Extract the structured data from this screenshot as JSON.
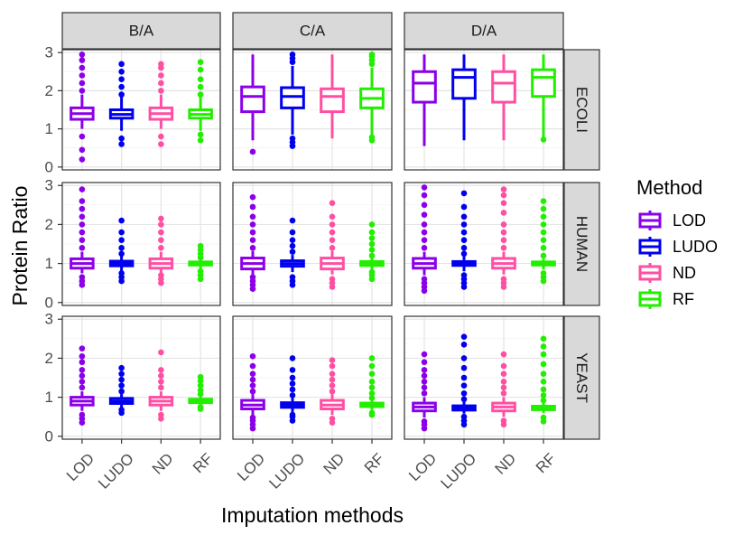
{
  "chart_data": {
    "type": "box",
    "ylabel": "Protein Ratio",
    "xlabel": "Imputation methods",
    "facet_cols": [
      "B/A",
      "C/A",
      "D/A"
    ],
    "facet_rows": [
      "ECOLI",
      "HUMAN",
      "YEAST"
    ],
    "methods": [
      "LOD",
      "LUDO",
      "ND",
      "RF"
    ],
    "colors": {
      "LOD": "#8B00E8",
      "LUDO": "#0000EE",
      "ND": "#FF4FA3",
      "RF": "#22EE00"
    },
    "ylim": [
      0,
      3
    ],
    "yticks": [
      0,
      1,
      2,
      3
    ],
    "grid": true,
    "legend": {
      "title": "Method",
      "position": "right",
      "entries": [
        "LOD",
        "LUDO",
        "ND",
        "RF"
      ]
    },
    "panels": {
      "B/A": {
        "ECOLI": {
          "LOD": {
            "min": 1.0,
            "q1": 1.25,
            "median": 1.4,
            "q3": 1.55,
            "max": 1.9,
            "outliers": [
              0.2,
              0.45,
              0.8,
              2.0,
              2.2,
              2.4,
              2.6,
              2.8,
              2.95
            ]
          },
          "LUDO": {
            "min": 0.95,
            "q1": 1.28,
            "median": 1.38,
            "q3": 1.5,
            "max": 1.85,
            "outliers": [
              0.6,
              0.75,
              1.9,
              2.1,
              2.3,
              2.5,
              2.7
            ]
          },
          "ND": {
            "min": 1.0,
            "q1": 1.25,
            "median": 1.4,
            "q3": 1.55,
            "max": 1.9,
            "outliers": [
              0.6,
              0.8,
              2.0,
              2.2,
              2.4,
              2.6,
              2.7
            ]
          },
          "RF": {
            "min": 0.95,
            "q1": 1.28,
            "median": 1.38,
            "q3": 1.5,
            "max": 1.85,
            "outliers": [
              0.7,
              0.85,
              1.9,
              2.1,
              2.3,
              2.55,
              2.75
            ]
          }
        },
        "HUMAN": {
          "LOD": {
            "min": 0.75,
            "q1": 0.88,
            "median": 1.0,
            "q3": 1.12,
            "max": 1.3,
            "outliers": [
              0.45,
              0.55,
              0.65,
              1.4,
              1.6,
              1.8,
              2.0,
              2.2,
              2.4,
              2.6,
              2.9
            ]
          },
          "LUDO": {
            "min": 0.8,
            "q1": 0.94,
            "median": 1.0,
            "q3": 1.06,
            "max": 1.2,
            "outliers": [
              0.55,
              0.65,
              0.75,
              1.25,
              1.4,
              1.6,
              1.8,
              2.1
            ]
          },
          "ND": {
            "min": 0.75,
            "q1": 0.88,
            "median": 1.0,
            "q3": 1.12,
            "max": 1.3,
            "outliers": [
              0.5,
              0.6,
              0.7,
              1.4,
              1.6,
              1.8,
              2.0,
              2.15
            ]
          },
          "RF": {
            "min": 0.85,
            "q1": 0.96,
            "median": 1.0,
            "q3": 1.04,
            "max": 1.12,
            "outliers": [
              0.6,
              0.7,
              0.8,
              1.15,
              1.25,
              1.35,
              1.45
            ]
          }
        },
        "YEAST": {
          "LOD": {
            "min": 0.65,
            "q1": 0.8,
            "median": 0.9,
            "q3": 1.0,
            "max": 1.15,
            "outliers": [
              0.35,
              0.45,
              0.55,
              1.25,
              1.4,
              1.55,
              1.7,
              1.9,
              2.05,
              2.25
            ]
          },
          "LUDO": {
            "min": 0.72,
            "q1": 0.84,
            "median": 0.9,
            "q3": 0.97,
            "max": 1.08,
            "outliers": [
              0.6,
              0.68,
              1.15,
              1.3,
              1.45,
              1.6,
              1.75
            ]
          },
          "ND": {
            "min": 0.65,
            "q1": 0.8,
            "median": 0.9,
            "q3": 1.0,
            "max": 1.15,
            "outliers": [
              0.45,
              0.55,
              1.25,
              1.4,
              1.55,
              1.7,
              2.15
            ]
          },
          "RF": {
            "min": 0.78,
            "q1": 0.86,
            "median": 0.9,
            "q3": 0.95,
            "max": 1.02,
            "outliers": [
              0.7,
              0.75,
              1.08,
              1.18,
              1.3,
              1.42,
              1.52
            ]
          }
        }
      },
      "C/A": {
        "ECOLI": {
          "LOD": {
            "min": 0.7,
            "q1": 1.45,
            "median": 1.85,
            "q3": 2.1,
            "max": 2.95,
            "outliers": [
              0.4
            ]
          },
          "LUDO": {
            "min": 0.85,
            "q1": 1.55,
            "median": 1.85,
            "q3": 2.08,
            "max": 2.65,
            "outliers": [
              0.55,
              0.65,
              0.75,
              2.75,
              2.85,
              2.95
            ]
          },
          "ND": {
            "min": 0.75,
            "q1": 1.45,
            "median": 1.85,
            "q3": 2.05,
            "max": 2.95,
            "outliers": []
          },
          "RF": {
            "min": 0.85,
            "q1": 1.55,
            "median": 1.8,
            "q3": 2.05,
            "max": 2.6,
            "outliers": [
              0.7,
              0.78,
              2.7,
              2.8,
              2.9,
              2.95
            ]
          }
        },
        "HUMAN": {
          "LOD": {
            "min": 0.72,
            "q1": 0.86,
            "median": 1.0,
            "q3": 1.14,
            "max": 1.32,
            "outliers": [
              0.35,
              0.45,
              0.55,
              0.65,
              1.4,
              1.6,
              1.8,
              2.0,
              2.2,
              2.45,
              2.7
            ]
          },
          "LUDO": {
            "min": 0.78,
            "q1": 0.93,
            "median": 1.0,
            "q3": 1.07,
            "max": 1.22,
            "outliers": [
              0.45,
              0.55,
              0.65,
              1.3,
              1.45,
              1.6,
              1.8,
              2.1
            ]
          },
          "ND": {
            "min": 0.72,
            "q1": 0.86,
            "median": 1.0,
            "q3": 1.14,
            "max": 1.32,
            "outliers": [
              0.4,
              0.5,
              0.6,
              1.4,
              1.6,
              1.8,
              2.0,
              2.2,
              2.55
            ]
          },
          "RF": {
            "min": 0.84,
            "q1": 0.95,
            "median": 1.0,
            "q3": 1.05,
            "max": 1.14,
            "outliers": [
              0.6,
              0.7,
              0.78,
              1.2,
              1.35,
              1.5,
              1.65,
              1.8,
              2.0
            ]
          }
        },
        "YEAST": {
          "LOD": {
            "min": 0.55,
            "q1": 0.7,
            "median": 0.8,
            "q3": 0.92,
            "max": 1.08,
            "outliers": [
              0.2,
              0.3,
              0.4,
              0.48,
              1.15,
              1.3,
              1.45,
              1.6,
              1.8,
              2.05
            ]
          },
          "LUDO": {
            "min": 0.62,
            "q1": 0.74,
            "median": 0.8,
            "q3": 0.86,
            "max": 0.98,
            "outliers": [
              0.4,
              0.5,
              0.55,
              1.05,
              1.2,
              1.35,
              1.5,
              1.7,
              2.0
            ]
          },
          "ND": {
            "min": 0.55,
            "q1": 0.7,
            "median": 0.8,
            "q3": 0.92,
            "max": 1.08,
            "outliers": [
              0.35,
              0.45,
              1.15,
              1.3,
              1.45,
              1.6,
              1.8,
              1.95
            ]
          },
          "RF": {
            "min": 0.68,
            "q1": 0.76,
            "median": 0.8,
            "q3": 0.85,
            "max": 0.92,
            "outliers": [
              0.55,
              0.6,
              0.98,
              1.1,
              1.25,
              1.4,
              1.6,
              1.8,
              2.0
            ]
          }
        }
      },
      "D/A": {
        "ECOLI": {
          "LOD": {
            "min": 0.55,
            "q1": 1.7,
            "median": 2.2,
            "q3": 2.5,
            "max": 2.95,
            "outliers": []
          },
          "LUDO": {
            "min": 0.7,
            "q1": 1.8,
            "median": 2.35,
            "q3": 2.55,
            "max": 2.95,
            "outliers": []
          },
          "ND": {
            "min": 0.7,
            "q1": 1.7,
            "median": 2.2,
            "q3": 2.5,
            "max": 2.95,
            "outliers": []
          },
          "RF": {
            "min": 0.75,
            "q1": 1.85,
            "median": 2.35,
            "q3": 2.55,
            "max": 2.95,
            "outliers": [
              0.72
            ]
          }
        },
        "HUMAN": {
          "LOD": {
            "min": 0.7,
            "q1": 0.88,
            "median": 1.0,
            "q3": 1.13,
            "max": 1.3,
            "outliers": [
              0.3,
              0.4,
              0.5,
              0.6,
              1.4,
              1.6,
              1.8,
              2.0,
              2.25,
              2.5,
              2.75,
              2.95
            ]
          },
          "LUDO": {
            "min": 0.8,
            "q1": 0.95,
            "median": 1.0,
            "q3": 1.05,
            "max": 1.18,
            "outliers": [
              0.4,
              0.5,
              0.6,
              0.7,
              1.25,
              1.4,
              1.6,
              1.8,
              2.0,
              2.2,
              2.45,
              2.8
            ]
          },
          "ND": {
            "min": 0.72,
            "q1": 0.88,
            "median": 1.0,
            "q3": 1.13,
            "max": 1.3,
            "outliers": [
              0.4,
              0.5,
              0.6,
              1.4,
              1.6,
              1.8,
              2.0,
              2.3,
              2.55,
              2.75,
              2.9
            ]
          },
          "RF": {
            "min": 0.85,
            "q1": 0.96,
            "median": 1.0,
            "q3": 1.04,
            "max": 1.12,
            "outliers": [
              0.55,
              0.65,
              0.75,
              1.2,
              1.4,
              1.6,
              1.8,
              2.0,
              2.2,
              2.4,
              2.6
            ]
          }
        },
        "YEAST": {
          "LOD": {
            "min": 0.48,
            "q1": 0.65,
            "median": 0.75,
            "q3": 0.85,
            "max": 1.0,
            "outliers": [
              0.2,
              0.3,
              0.38,
              1.1,
              1.25,
              1.4,
              1.55,
              1.7,
              1.9,
              2.1
            ]
          },
          "LUDO": {
            "min": 0.58,
            "q1": 0.67,
            "median": 0.72,
            "q3": 0.78,
            "max": 0.88,
            "outliers": [
              0.3,
              0.4,
              0.5,
              0.95,
              1.1,
              1.3,
              1.5,
              1.75,
              2.0,
              2.35,
              2.55
            ]
          },
          "ND": {
            "min": 0.5,
            "q1": 0.65,
            "median": 0.75,
            "q3": 0.85,
            "max": 1.0,
            "outliers": [
              0.3,
              0.4,
              1.1,
              1.25,
              1.4,
              1.6,
              1.8,
              2.1
            ]
          },
          "RF": {
            "min": 0.6,
            "q1": 0.68,
            "median": 0.72,
            "q3": 0.77,
            "max": 0.85,
            "outliers": [
              0.38,
              0.48,
              0.92,
              1.05,
              1.2,
              1.4,
              1.6,
              1.85,
              2.1,
              2.3,
              2.5
            ]
          }
        }
      }
    }
  }
}
